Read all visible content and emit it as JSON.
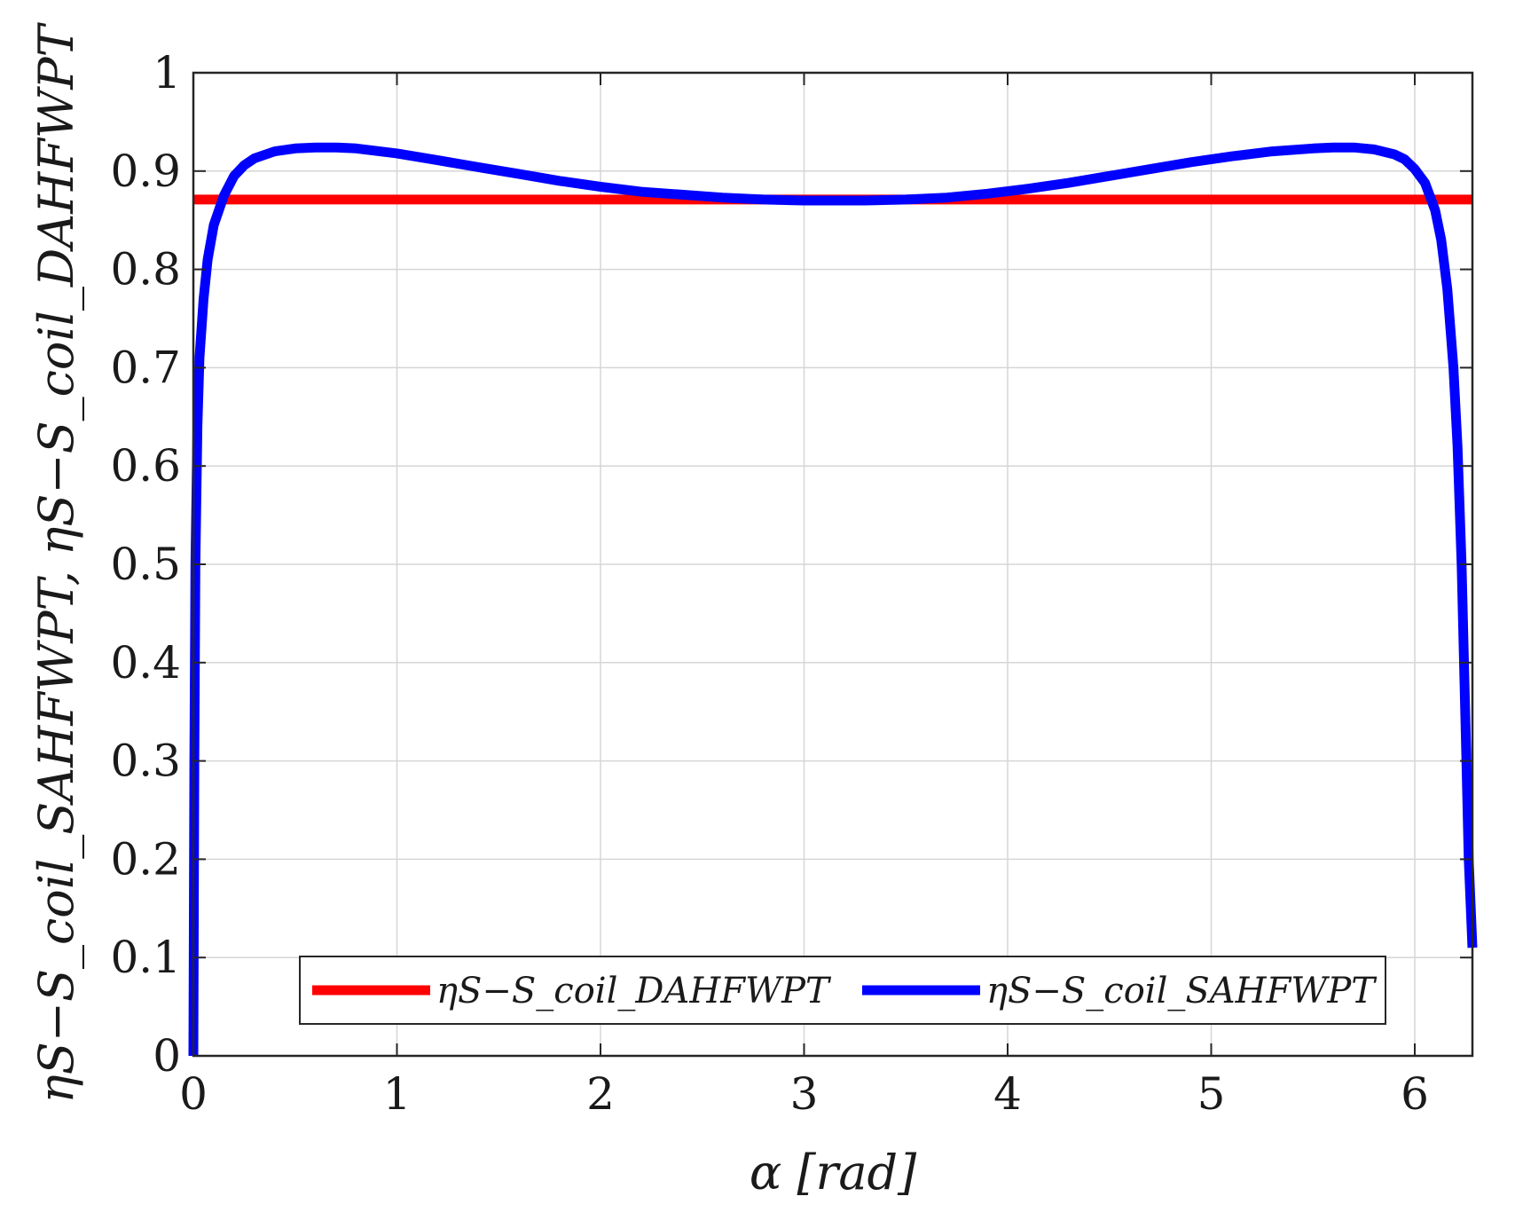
{
  "chart_data": {
    "type": "line",
    "xlabel": "α [rad]",
    "ylabel": "ηS−S_coil_SAHFWPT, ηS−S_coil_DAHFWPT",
    "xlim": [
      0,
      6.2832
    ],
    "ylim": [
      0,
      1
    ],
    "xticks": [
      "0",
      "1",
      "2",
      "3",
      "4",
      "5",
      "6"
    ],
    "yticks": [
      "0",
      "0.1",
      "0.2",
      "0.3",
      "0.4",
      "0.5",
      "0.6",
      "0.7",
      "0.8",
      "0.9",
      "1"
    ],
    "grid": true,
    "legend": {
      "placement": "bottom-center",
      "orientation": "horizontal"
    },
    "series": [
      {
        "name": "ηS−S_coil_DAHFWPT",
        "color": "#ff0000",
        "x": [
          0,
          6.2832
        ],
        "y": [
          0.871,
          0.871
        ]
      },
      {
        "name": "ηS−S_coil_SAHFWPT",
        "color": "#0000ff",
        "x": [
          0,
          0.005,
          0.01,
          0.02,
          0.03,
          0.05,
          0.07,
          0.1,
          0.15,
          0.2,
          0.25,
          0.3,
          0.4,
          0.5,
          0.6,
          0.7,
          0.8,
          1.0,
          1.2,
          1.4,
          1.6,
          1.8,
          2.0,
          2.2,
          2.4,
          2.6,
          2.8,
          3.0,
          3.14,
          3.3,
          3.5,
          3.7,
          3.9,
          4.1,
          4.3,
          4.5,
          4.7,
          4.9,
          5.1,
          5.3,
          5.5,
          5.6,
          5.7,
          5.8,
          5.9,
          5.95,
          6.0,
          6.05,
          6.1,
          6.13,
          6.16,
          6.19,
          6.21,
          6.23,
          6.25,
          6.265,
          6.2832
        ],
        "y": [
          0,
          0.3,
          0.5,
          0.64,
          0.71,
          0.77,
          0.81,
          0.845,
          0.875,
          0.895,
          0.906,
          0.913,
          0.92,
          0.923,
          0.924,
          0.924,
          0.923,
          0.918,
          0.911,
          0.904,
          0.897,
          0.89,
          0.884,
          0.879,
          0.876,
          0.873,
          0.871,
          0.87,
          0.87,
          0.87,
          0.871,
          0.873,
          0.877,
          0.882,
          0.888,
          0.895,
          0.902,
          0.909,
          0.915,
          0.92,
          0.923,
          0.924,
          0.924,
          0.922,
          0.917,
          0.912,
          0.902,
          0.888,
          0.86,
          0.83,
          0.78,
          0.7,
          0.62,
          0.5,
          0.33,
          0.2,
          0.11
        ]
      }
    ]
  }
}
